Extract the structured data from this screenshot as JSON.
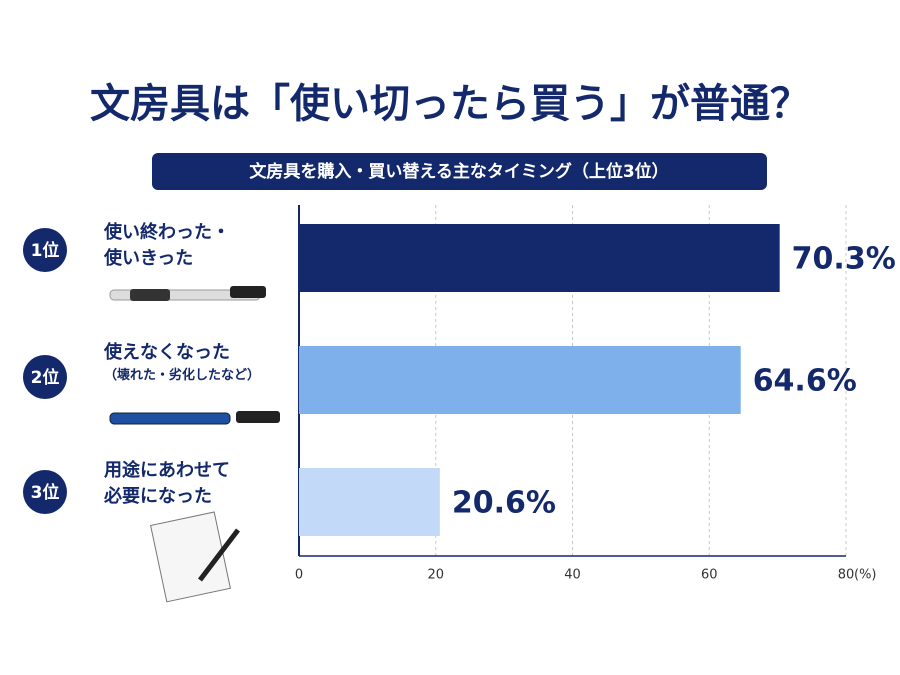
{
  "chart_data": {
    "type": "bar",
    "title": "文房具は「使い切ったら買う」が普通？",
    "subtitle": "文房具を購入・買い替える主なタイミング（上位3位）",
    "ranks": [
      "1位",
      "2位",
      "3位"
    ],
    "categories": [
      "使い終わった・\n使いきった",
      "使えなくなった",
      "用途にあわせて\n必要になった"
    ],
    "category_notes": [
      null,
      "（壊れた・劣化したなど）",
      null
    ],
    "values": [
      70.3,
      64.6,
      20.6
    ],
    "value_labels": [
      "70.3%",
      "64.6%",
      "20.6%"
    ],
    "colors": [
      "#13296b",
      "#7eb0ec",
      "#c2d9f8"
    ],
    "xlim": [
      0,
      80
    ],
    "xticks": [
      0,
      20,
      40,
      60,
      80
    ],
    "xlabel": "(%)",
    "grid": true
  }
}
